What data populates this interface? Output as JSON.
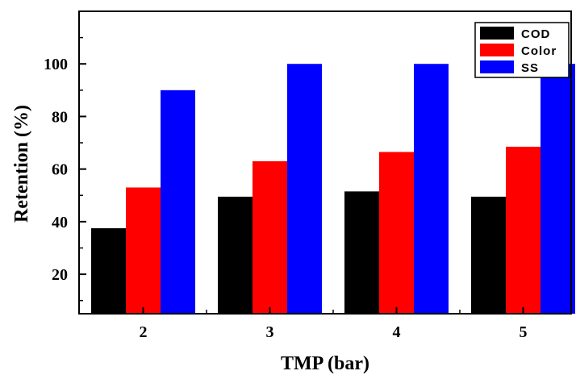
{
  "chart_data": {
    "type": "bar",
    "title": "",
    "xlabel": "TMP (bar)",
    "ylabel": "Retention (%)",
    "categories": [
      "2",
      "3",
      "4",
      "5"
    ],
    "series": [
      {
        "name": "COD",
        "color": "#000000",
        "values": [
          37.5,
          49.5,
          51.5,
          49.5
        ]
      },
      {
        "name": "Color",
        "color": "#ff0000",
        "values": [
          53,
          63,
          66.5,
          68.5
        ]
      },
      {
        "name": "SS",
        "color": "#0000ff",
        "values": [
          90,
          100,
          100,
          100
        ]
      }
    ],
    "ylim": [
      5,
      120
    ],
    "yticks": [
      20,
      40,
      60,
      80,
      100
    ],
    "grid": false,
    "legend_position": "top-right"
  }
}
